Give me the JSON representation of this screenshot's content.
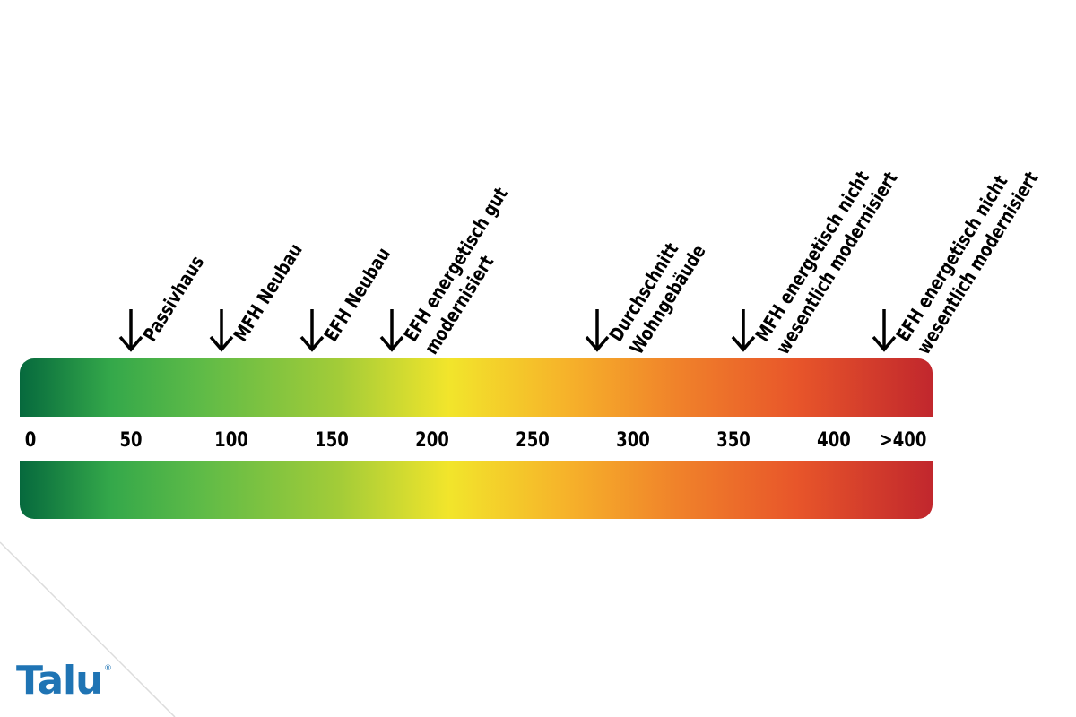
{
  "scale": {
    "ticks": [
      "0",
      "50",
      "100",
      "150",
      "200",
      "250",
      "300",
      "350",
      "400",
      ">400"
    ]
  },
  "markers": [
    {
      "lines": [
        "Passivhaus"
      ],
      "value": 50
    },
    {
      "lines": [
        "MFH Neubau"
      ],
      "value": 95
    },
    {
      "lines": [
        "EFH Neubau"
      ],
      "value": 140
    },
    {
      "lines": [
        "EFH energetisch gut",
        "modernisiert"
      ],
      "value": 180
    },
    {
      "lines": [
        "Durchschnitt",
        "Wohngebäude"
      ],
      "value": 282
    },
    {
      "lines": [
        "MFH energetisch nicht",
        "wesentlich modernisiert"
      ],
      "value": 355
    },
    {
      "lines": [
        "EFH energetisch nicht",
        "wesentlich modernisiert"
      ],
      "value": 425
    }
  ],
  "logo": {
    "text": "Talu",
    "mark": "®"
  },
  "colors": {
    "scale_start": "#06693d",
    "scale_middle": "#f2e52b",
    "scale_end": "#c1272d",
    "logo": "#1f74b4"
  }
}
